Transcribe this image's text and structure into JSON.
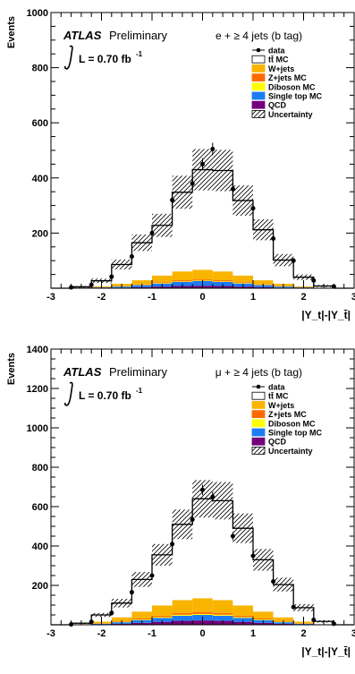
{
  "chart_data": [
    {
      "type": "histogram-stack",
      "atlas_label": "ATLAS",
      "preliminary_label": "Preliminary",
      "luminosity_label": "L = 0.70 fb",
      "luminosity_exponent": "-1",
      "channel_label": "e + ≥ 4 jets (b tag)",
      "ylabel": "Events",
      "xlabel": "|Y_t|-|Y_t̄|",
      "xlim": [
        -3,
        3
      ],
      "ylim": [
        0,
        1000
      ],
      "xticks": [
        -3,
        -2,
        -1,
        0,
        1,
        2,
        3
      ],
      "yticks": [
        200,
        400,
        600,
        800,
        1000
      ],
      "bin_edges": [
        -3.0,
        -2.6,
        -2.2,
        -1.8,
        -1.4,
        -1.0,
        -0.6,
        -0.2,
        0.2,
        0.6,
        1.0,
        1.4,
        1.8,
        2.2,
        2.6,
        3.0
      ],
      "legend": [
        {
          "name": "data",
          "style": "marker",
          "color": "#000000"
        },
        {
          "name": "tt̄ MC",
          "style": "box",
          "color": "#ffffff"
        },
        {
          "name": "W+jets",
          "style": "box",
          "color": "#f9b400"
        },
        {
          "name": "Z+jets MC",
          "style": "box",
          "color": "#ff6a00"
        },
        {
          "name": "Diboson MC",
          "style": "box",
          "color": "#ffff00"
        },
        {
          "name": "Single top MC",
          "style": "box",
          "color": "#1d7cf2"
        },
        {
          "name": "QCD",
          "style": "box",
          "color": "#73007a"
        },
        {
          "name": "Uncertainty",
          "style": "hatch",
          "color": "#000000"
        }
      ],
      "series": [
        {
          "name": "QCD",
          "color": "#73007a",
          "values": [
            0,
            0,
            1,
            2,
            4,
            6,
            8,
            9,
            8,
            6,
            4,
            2,
            1,
            0,
            0
          ]
        },
        {
          "name": "Single top MC",
          "color": "#1d7cf2",
          "values": [
            0,
            1,
            2,
            4,
            7,
            11,
            15,
            17,
            15,
            11,
            7,
            4,
            2,
            1,
            0
          ]
        },
        {
          "name": "Diboson MC",
          "color": "#ffff00",
          "values": [
            0,
            0,
            0,
            1,
            1,
            2,
            2,
            2,
            2,
            2,
            1,
            1,
            0,
            0,
            0
          ]
        },
        {
          "name": "Z+jets MC",
          "color": "#ff6a00",
          "values": [
            0,
            0,
            1,
            1,
            2,
            3,
            4,
            4,
            4,
            3,
            2,
            1,
            1,
            0,
            0
          ]
        },
        {
          "name": "W+jets",
          "color": "#f9b400",
          "values": [
            0,
            1,
            3,
            8,
            15,
            24,
            32,
            35,
            32,
            24,
            15,
            8,
            3,
            1,
            0
          ]
        },
        {
          "name": "tt̄ MC",
          "color": "#ffffff",
          "values": [
            0,
            3,
            20,
            70,
            136,
            182,
            287,
            363,
            366,
            272,
            183,
            86,
            33,
            6,
            0
          ]
        }
      ],
      "mc_total": [
        0,
        5,
        27,
        86,
        165,
        228,
        348,
        430,
        427,
        318,
        212,
        102,
        40,
        8,
        0
      ],
      "uncertainty": [
        0,
        3,
        8,
        18,
        30,
        42,
        60,
        75,
        75,
        55,
        38,
        22,
        10,
        4,
        0
      ],
      "data_points": [
        {
          "x": -2.6,
          "y": 3
        },
        {
          "x": -2.2,
          "y": 12
        },
        {
          "x": -1.8,
          "y": 42
        },
        {
          "x": -1.4,
          "y": 115
        },
        {
          "x": -1.0,
          "y": 200
        },
        {
          "x": -0.6,
          "y": 320
        },
        {
          "x": -0.2,
          "y": 380
        },
        {
          "x": 0.0,
          "y": 450
        },
        {
          "x": 0.2,
          "y": 505
        },
        {
          "x": 0.6,
          "y": 360
        },
        {
          "x": 1.0,
          "y": 290
        },
        {
          "x": 1.4,
          "y": 180
        },
        {
          "x": 1.8,
          "y": 100
        },
        {
          "x": 2.2,
          "y": 28
        },
        {
          "x": 2.6,
          "y": 6
        }
      ]
    },
    {
      "type": "histogram-stack",
      "atlas_label": "ATLAS",
      "preliminary_label": "Preliminary",
      "luminosity_label": "L = 0.70 fb",
      "luminosity_exponent": "-1",
      "channel_label": "μ + ≥ 4 jets (b tag)",
      "ylabel": "Events",
      "xlabel": "|Y_t|-|Y_t̄|",
      "xlim": [
        -3,
        3
      ],
      "ylim": [
        0,
        1400
      ],
      "xticks": [
        -3,
        -2,
        -1,
        0,
        1,
        2,
        3
      ],
      "yticks": [
        200,
        400,
        600,
        800,
        1000,
        1200,
        1400
      ],
      "bin_edges": [
        -3.0,
        -2.6,
        -2.2,
        -1.8,
        -1.4,
        -1.0,
        -0.6,
        -0.2,
        0.2,
        0.6,
        1.0,
        1.4,
        1.8,
        2.2,
        2.6,
        3.0
      ],
      "legend": [
        {
          "name": "data",
          "style": "marker",
          "color": "#000000"
        },
        {
          "name": "tt̄ MC",
          "style": "box",
          "color": "#ffffff"
        },
        {
          "name": "W+jets",
          "style": "box",
          "color": "#f9b400"
        },
        {
          "name": "Z+jets MC",
          "style": "box",
          "color": "#ff6a00"
        },
        {
          "name": "Diboson MC",
          "style": "box",
          "color": "#ffff00"
        },
        {
          "name": "Single top MC",
          "style": "box",
          "color": "#1d7cf2"
        },
        {
          "name": "QCD",
          "style": "box",
          "color": "#73007a"
        },
        {
          "name": "Uncertainty",
          "style": "hatch",
          "color": "#000000"
        }
      ],
      "series": [
        {
          "name": "QCD",
          "color": "#73007a",
          "values": [
            0,
            0,
            2,
            5,
            10,
            15,
            20,
            22,
            20,
            15,
            10,
            5,
            2,
            0,
            0
          ]
        },
        {
          "name": "Single top MC",
          "color": "#1d7cf2",
          "values": [
            0,
            1,
            3,
            8,
            14,
            20,
            26,
            28,
            26,
            20,
            14,
            8,
            3,
            1,
            0
          ]
        },
        {
          "name": "Diboson MC",
          "color": "#ffff00",
          "values": [
            0,
            0,
            1,
            2,
            3,
            4,
            5,
            5,
            5,
            4,
            3,
            2,
            1,
            0,
            0
          ]
        },
        {
          "name": "Z+jets MC",
          "color": "#ff6a00",
          "values": [
            0,
            0,
            2,
            3,
            5,
            7,
            9,
            10,
            9,
            7,
            5,
            3,
            2,
            0,
            0
          ]
        },
        {
          "name": "W+jets",
          "color": "#f9b400",
          "values": [
            0,
            2,
            8,
            20,
            35,
            52,
            65,
            70,
            65,
            52,
            35,
            20,
            8,
            2,
            0
          ]
        },
        {
          "name": "tt̄ MC",
          "color": "#ffffff",
          "values": [
            0,
            5,
            34,
            72,
            163,
            257,
            385,
            505,
            505,
            392,
            263,
            166,
            71,
            14,
            0
          ]
        }
      ],
      "mc_total": [
        0,
        8,
        50,
        110,
        230,
        355,
        510,
        640,
        630,
        490,
        330,
        204,
        87,
        17,
        0
      ],
      "uncertainty": [
        0,
        4,
        10,
        22,
        38,
        55,
        75,
        95,
        95,
        75,
        55,
        35,
        18,
        6,
        0
      ],
      "data_points": [
        {
          "x": -2.6,
          "y": 2
        },
        {
          "x": -2.2,
          "y": 15
        },
        {
          "x": -1.8,
          "y": 60
        },
        {
          "x": -1.4,
          "y": 165
        },
        {
          "x": -1.0,
          "y": 250
        },
        {
          "x": -0.6,
          "y": 410
        },
        {
          "x": -0.2,
          "y": 535
        },
        {
          "x": 0.0,
          "y": 685
        },
        {
          "x": 0.2,
          "y": 650
        },
        {
          "x": 0.6,
          "y": 450
        },
        {
          "x": 1.0,
          "y": 350
        },
        {
          "x": 1.4,
          "y": 220
        },
        {
          "x": 1.8,
          "y": 90
        },
        {
          "x": 2.2,
          "y": 25
        },
        {
          "x": 2.6,
          "y": 5
        }
      ]
    }
  ]
}
